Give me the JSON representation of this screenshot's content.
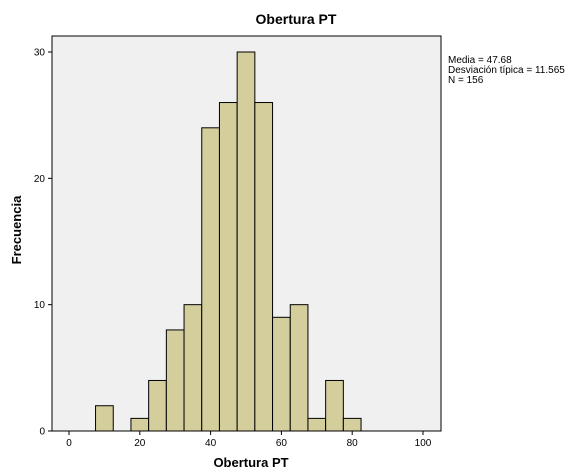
{
  "chart_data": {
    "type": "histogram",
    "title": "Obertura PT",
    "xlabel": "Obertura PT",
    "ylabel": "Frecuencia",
    "xlim": [
      -5,
      105
    ],
    "ylim": [
      0,
      32
    ],
    "xticks": [
      0,
      20,
      40,
      60,
      80,
      100
    ],
    "yticks": [
      0,
      10,
      20,
      30
    ],
    "bin_width": 5,
    "bins": [
      {
        "start": 7.5,
        "end": 12.5,
        "count": 2
      },
      {
        "start": 17.5,
        "end": 22.5,
        "count": 1
      },
      {
        "start": 22.5,
        "end": 27.5,
        "count": 4
      },
      {
        "start": 27.5,
        "end": 32.5,
        "count": 8
      },
      {
        "start": 32.5,
        "end": 37.5,
        "count": 10
      },
      {
        "start": 37.5,
        "end": 42.5,
        "count": 24
      },
      {
        "start": 42.5,
        "end": 47.5,
        "count": 26
      },
      {
        "start": 47.5,
        "end": 52.5,
        "count": 30
      },
      {
        "start": 52.5,
        "end": 57.5,
        "count": 26
      },
      {
        "start": 57.5,
        "end": 62.5,
        "count": 9
      },
      {
        "start": 62.5,
        "end": 67.5,
        "count": 10
      },
      {
        "start": 67.5,
        "end": 72.5,
        "count": 1
      },
      {
        "start": 72.5,
        "end": 77.5,
        "count": 4
      },
      {
        "start": 77.5,
        "end": 82.5,
        "count": 1
      }
    ],
    "stats": [
      "Media = 47.68",
      "Desviación típica = 11.565",
      "N = 156"
    ],
    "colors": {
      "bar_fill": "#d3ce9c",
      "bar_stroke": "#000000",
      "plot_background": "#f0f0f0",
      "frame": "#000000"
    }
  }
}
